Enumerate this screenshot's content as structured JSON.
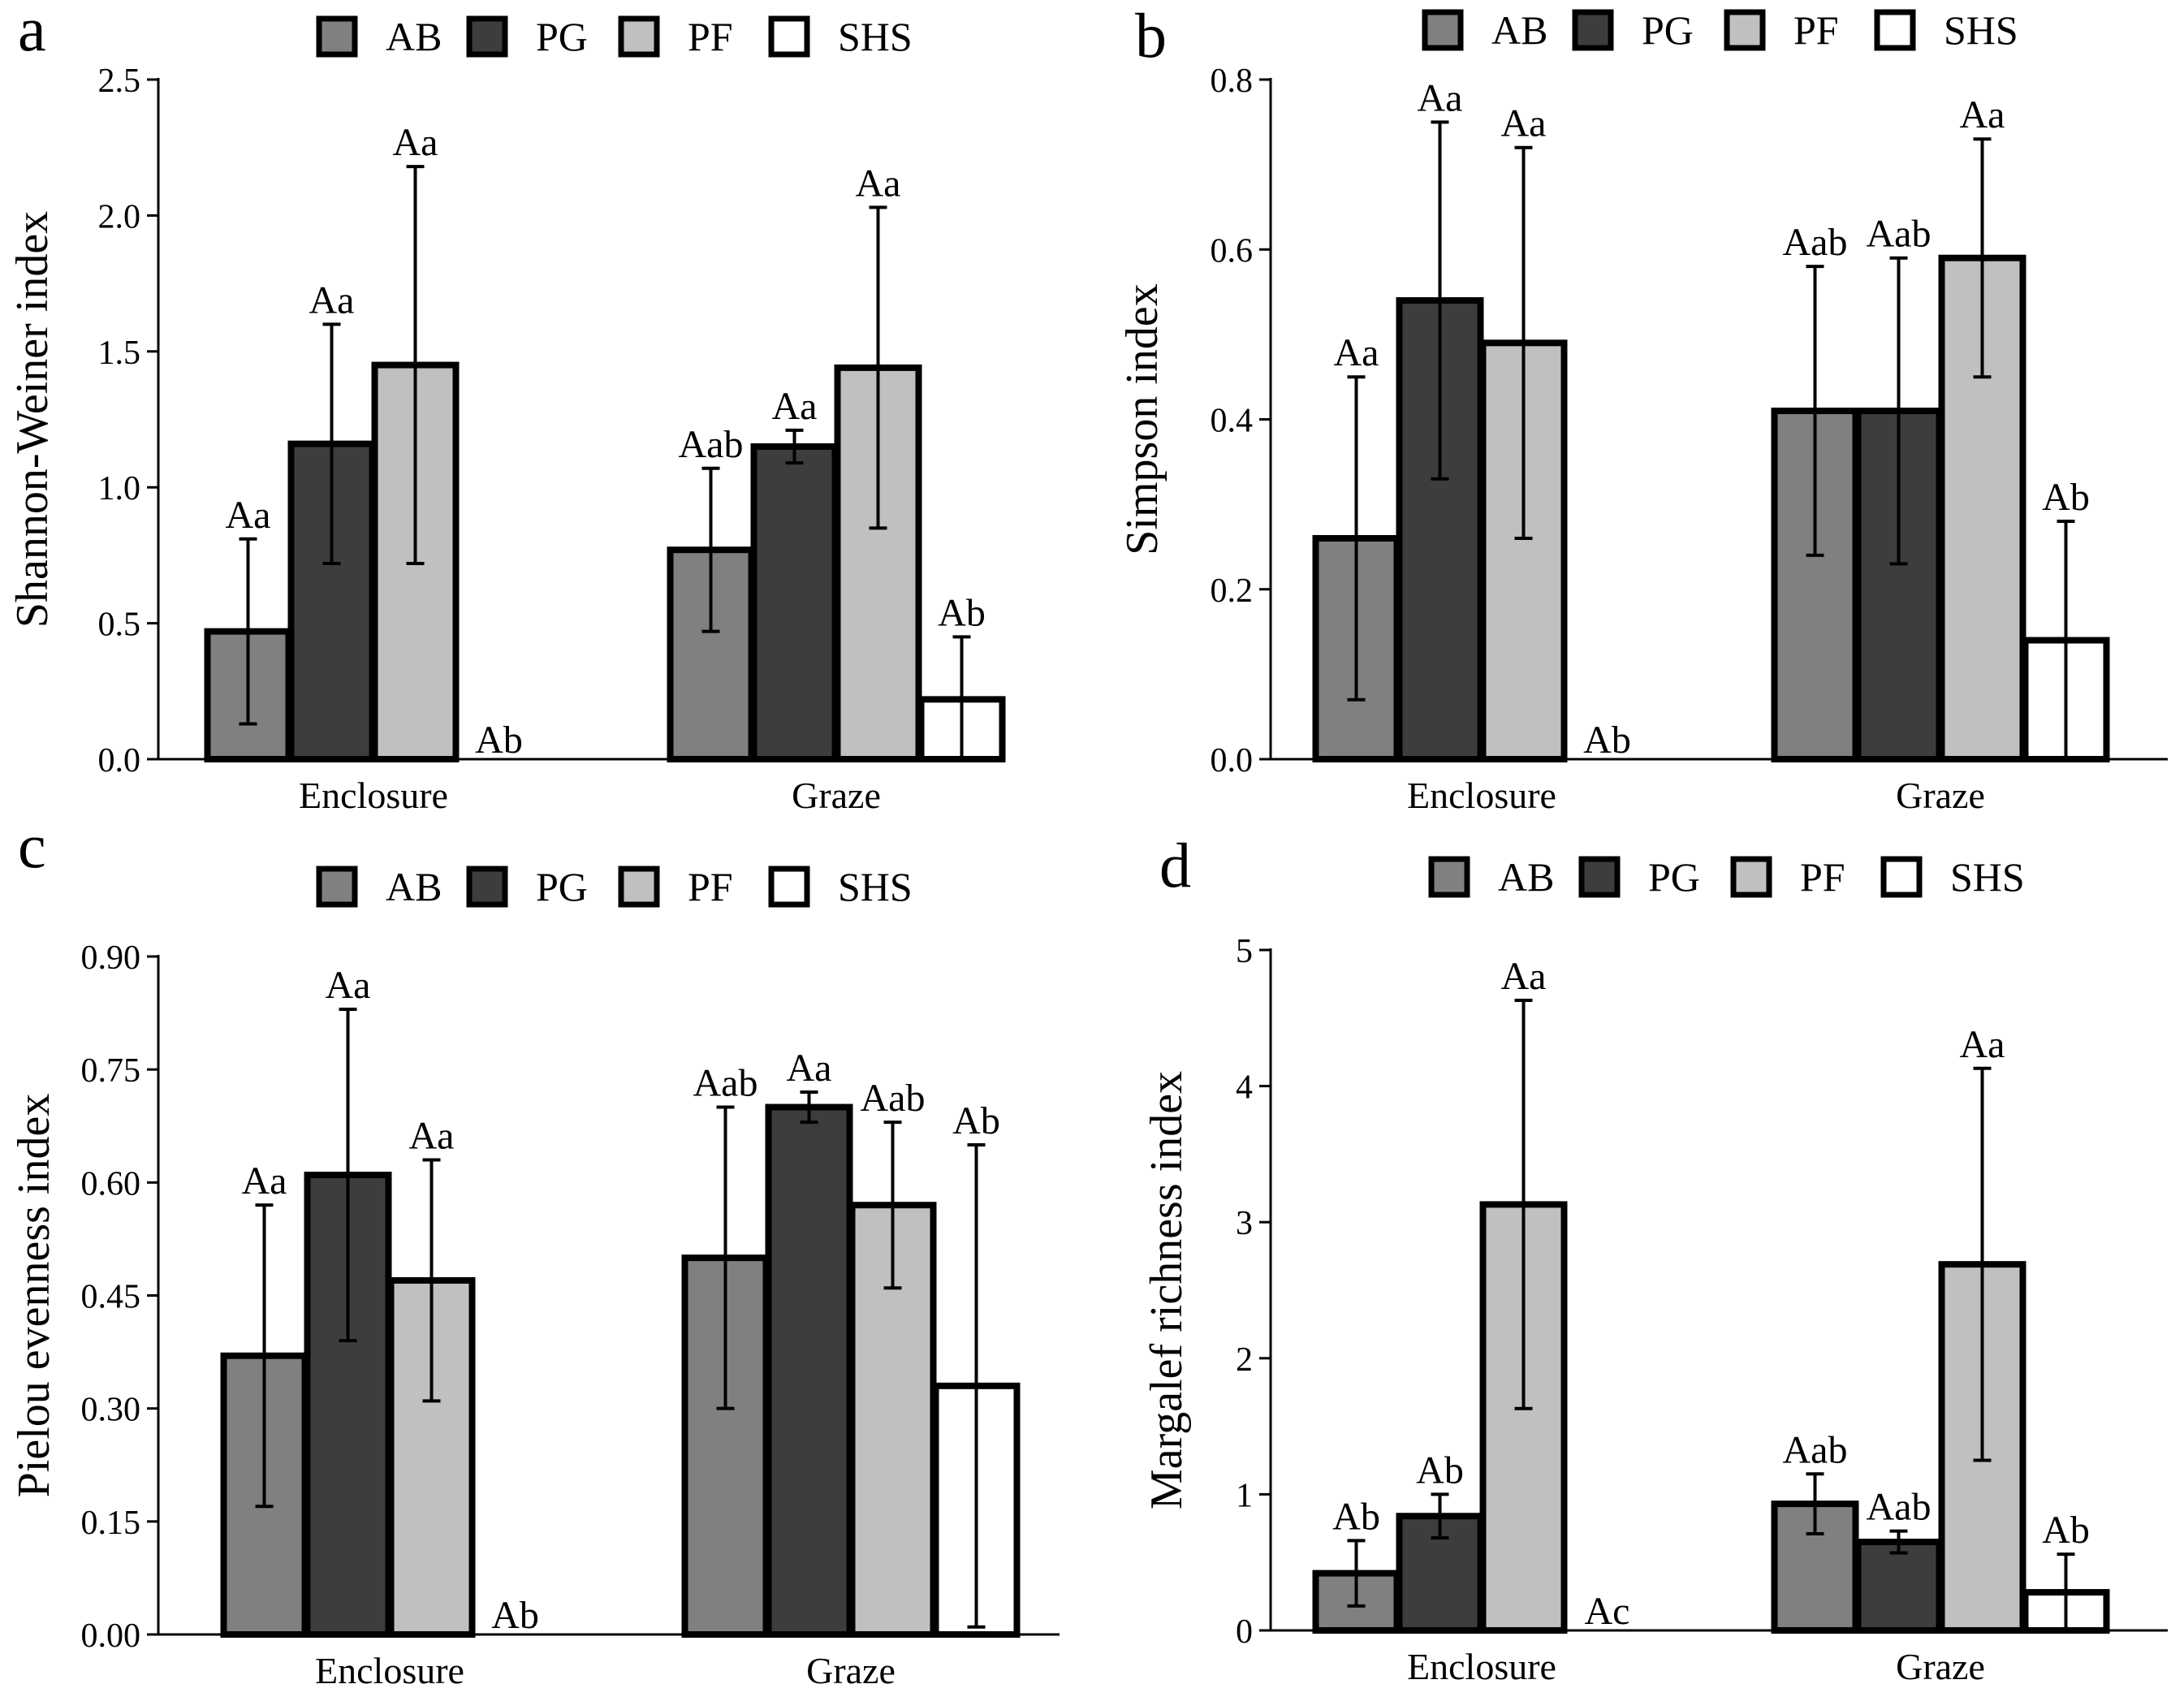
{
  "colors": {
    "AB": "#808080",
    "PG": "#3d3d3d",
    "PF": "#c0c0c0",
    "SHS": "#ffffff",
    "stroke": "#000000"
  },
  "chart_data": [
    {
      "panel_label": "a",
      "type": "bar",
      "ylabel": "Shannon-Weiner index",
      "ylim": [
        0,
        2.5
      ],
      "yticks": [
        0,
        0.5,
        1,
        1.5,
        2,
        2.5
      ],
      "ytick_labels": [
        "0.0",
        "0.5",
        "1.0",
        "1.5",
        "2.0",
        "2.5"
      ],
      "categories": [
        "Enclosure",
        "Graze"
      ],
      "legend": [
        "AB",
        "PG",
        "PF",
        "SHS"
      ],
      "series": [
        {
          "name": "AB",
          "values": [
            0.47,
            0.77
          ],
          "errors": [
            0.34,
            0.3
          ],
          "letters": [
            "Aa",
            "Aab"
          ]
        },
        {
          "name": "PG",
          "values": [
            1.16,
            1.15
          ],
          "errors": [
            0.44,
            0.06
          ],
          "letters": [
            "Aa",
            "Aa"
          ]
        },
        {
          "name": "PF",
          "values": [
            1.45,
            1.44
          ],
          "errors": [
            0.73,
            0.59
          ],
          "letters": [
            "Aa",
            "Aa"
          ]
        },
        {
          "name": "SHS",
          "values": [
            0,
            0.22
          ],
          "errors": [
            0,
            0.23
          ],
          "letters": [
            "Ab",
            "Ab"
          ]
        }
      ]
    },
    {
      "panel_label": "b",
      "type": "bar",
      "ylabel": "Simpson index",
      "ylim": [
        0,
        0.8
      ],
      "yticks": [
        0,
        0.2,
        0.4,
        0.6,
        0.8
      ],
      "ytick_labels": [
        "0.0",
        "0.2",
        "0.4",
        "0.6",
        "0.8"
      ],
      "categories": [
        "Enclosure",
        "Graze"
      ],
      "legend": [
        "AB",
        "PG",
        "PF",
        "SHS"
      ],
      "series": [
        {
          "name": "AB",
          "values": [
            0.26,
            0.41
          ],
          "errors": [
            0.19,
            0.17
          ],
          "letters": [
            "Aa",
            "Aab"
          ]
        },
        {
          "name": "PG",
          "values": [
            0.54,
            0.41
          ],
          "errors": [
            0.21,
            0.18
          ],
          "letters": [
            "Aa",
            "Aab"
          ]
        },
        {
          "name": "PF",
          "values": [
            0.49,
            0.59
          ],
          "errors": [
            0.23,
            0.14
          ],
          "letters": [
            "Aa",
            "Aa"
          ]
        },
        {
          "name": "SHS",
          "values": [
            0,
            0.14
          ],
          "errors": [
            0,
            0.14
          ],
          "letters": [
            "Ab",
            "Ab"
          ]
        }
      ]
    },
    {
      "panel_label": "c",
      "type": "bar",
      "ylabel": "Pielou evenness index",
      "ylim": [
        0,
        0.9
      ],
      "yticks": [
        0,
        0.15,
        0.3,
        0.45,
        0.6,
        0.75,
        0.9
      ],
      "ytick_labels": [
        "0.00",
        "0.15",
        "0.30",
        "0.45",
        "0.60",
        "0.75",
        "0.90"
      ],
      "categories": [
        "Enclosure",
        "Graze"
      ],
      "legend": [
        "AB",
        "PG",
        "PF",
        "SHS"
      ],
      "series": [
        {
          "name": "AB",
          "values": [
            0.37,
            0.5
          ],
          "errors": [
            0.2,
            0.2
          ],
          "letters": [
            "Aa",
            "Aab"
          ]
        },
        {
          "name": "PG",
          "values": [
            0.61,
            0.7
          ],
          "errors": [
            0.22,
            0.02
          ],
          "letters": [
            "Aa",
            "Aa"
          ]
        },
        {
          "name": "PF",
          "values": [
            0.47,
            0.57
          ],
          "errors": [
            0.16,
            0.11
          ],
          "letters": [
            "Aa",
            "Aab"
          ]
        },
        {
          "name": "SHS",
          "values": [
            0,
            0.33
          ],
          "errors": [
            0,
            0.32
          ],
          "letters": [
            "Ab",
            "Ab"
          ]
        }
      ]
    },
    {
      "panel_label": "d",
      "type": "bar",
      "ylabel": "Margalef richness index",
      "ylim": [
        0,
        5
      ],
      "yticks": [
        0,
        1,
        2,
        3,
        4,
        5
      ],
      "ytick_labels": [
        "0",
        "1",
        "2",
        "3",
        "4",
        "5"
      ],
      "categories": [
        "Enclosure",
        "Graze"
      ],
      "legend": [
        "AB",
        "PG",
        "PF",
        "SHS"
      ],
      "series": [
        {
          "name": "AB",
          "values": [
            0.42,
            0.93
          ],
          "errors": [
            0.24,
            0.22
          ],
          "letters": [
            "Ab",
            "Aab"
          ]
        },
        {
          "name": "PG",
          "values": [
            0.84,
            0.65
          ],
          "errors": [
            0.16,
            0.08
          ],
          "letters": [
            "Ab",
            "Aab"
          ]
        },
        {
          "name": "PF",
          "values": [
            3.13,
            2.69
          ],
          "errors": [
            1.5,
            1.44
          ],
          "letters": [
            "Aa",
            "Aa"
          ]
        },
        {
          "name": "SHS",
          "values": [
            0,
            0.28
          ],
          "errors": [
            0,
            0.28
          ],
          "letters": [
            "Ac",
            "Ab"
          ]
        }
      ]
    }
  ]
}
